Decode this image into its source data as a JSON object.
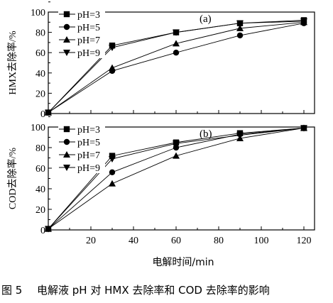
{
  "chart_data": [
    {
      "type": "line",
      "panel_label": "(a)",
      "ylabel": "HMX去除率/%",
      "xlabel": "",
      "x": [
        0,
        30,
        60,
        90,
        120
      ],
      "xlim": [
        0,
        125
      ],
      "ylim": [
        0,
        100
      ],
      "yticks": [
        "0",
        "20",
        "40",
        "60",
        "80",
        "100"
      ],
      "xticks": [],
      "legend_position": "top-left",
      "series": [
        {
          "name": "pH=3",
          "marker": "square",
          "values": [
            1,
            67,
            80,
            89,
            92
          ]
        },
        {
          "name": "pH=5",
          "marker": "circle",
          "values": [
            1,
            42,
            60,
            77,
            89
          ]
        },
        {
          "name": "pH=7",
          "marker": "triangle-up",
          "values": [
            1,
            45,
            69,
            84,
            90
          ]
        },
        {
          "name": "pH=9",
          "marker": "triangle-down",
          "values": [
            1,
            65,
            80,
            89,
            91
          ]
        }
      ]
    },
    {
      "type": "line",
      "panel_label": "(b)",
      "ylabel": "COD去除率/%",
      "xlabel": "电解时间/min",
      "x": [
        0,
        30,
        60,
        90,
        120
      ],
      "xlim": [
        0,
        125
      ],
      "ylim": [
        0,
        100
      ],
      "yticks": [
        "0",
        "20",
        "40",
        "60",
        "80",
        "100"
      ],
      "xticks": [
        "20",
        "40",
        "60",
        "80",
        "100",
        "120"
      ],
      "legend_position": "top-left",
      "series": [
        {
          "name": "pH=3",
          "marker": "square",
          "values": [
            1,
            72,
            85,
            94,
            99
          ]
        },
        {
          "name": "pH=5",
          "marker": "circle",
          "values": [
            1,
            56,
            80,
            93,
            99
          ]
        },
        {
          "name": "pH=7",
          "marker": "triangle-up",
          "values": [
            1,
            45,
            72,
            89,
            99
          ]
        },
        {
          "name": "pH=9",
          "marker": "triangle-down",
          "values": [
            1,
            69,
            84,
            92,
            99
          ]
        }
      ]
    }
  ],
  "caption": {
    "number": "图 5",
    "text": "电解液 pH 对 HMX 去除率和 COD 去除率的影响"
  }
}
